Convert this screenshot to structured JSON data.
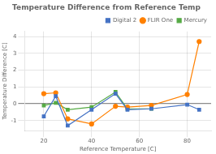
{
  "chart_data": {
    "type": "line",
    "title": "Temperature Difference from Reference Temp",
    "xlabel": "Reference Temperature [C]",
    "ylabel": "Temperature Difference [C]",
    "series": [
      {
        "name": "Digital 2",
        "color": "#4472C4",
        "marker": "square",
        "x": [
          20,
          25,
          30,
          40,
          50,
          55,
          65,
          80,
          85
        ],
        "values": [
          -0.75,
          0.45,
          -1.3,
          -0.35,
          0.6,
          -0.35,
          -0.3,
          -0.05,
          -0.35
        ]
      },
      {
        "name": "FLIR One",
        "color": "#FF8000",
        "marker": "circle",
        "x": [
          20,
          25,
          30,
          40,
          50,
          55,
          65,
          80,
          85
        ],
        "values": [
          0.6,
          0.65,
          -0.9,
          -1.2,
          -0.15,
          -0.2,
          -0.1,
          0.55,
          3.7
        ]
      },
      {
        "name": "Mercury",
        "color": "#55AA44",
        "marker": "square",
        "x": [
          20,
          25,
          30,
          40,
          50,
          55,
          65
        ],
        "values": [
          -0.1,
          0.05,
          -0.35,
          -0.2,
          0.7,
          -0.3,
          -0.3
        ]
      }
    ],
    "xlim": [
      12,
      90
    ],
    "ylim": [
      -1.6,
      4.3
    ],
    "xticks": [
      20,
      40,
      60,
      80
    ],
    "yticks": [
      -1,
      0,
      1,
      2,
      3,
      4
    ],
    "hline": 0,
    "grid": true,
    "legend": "upper right"
  }
}
